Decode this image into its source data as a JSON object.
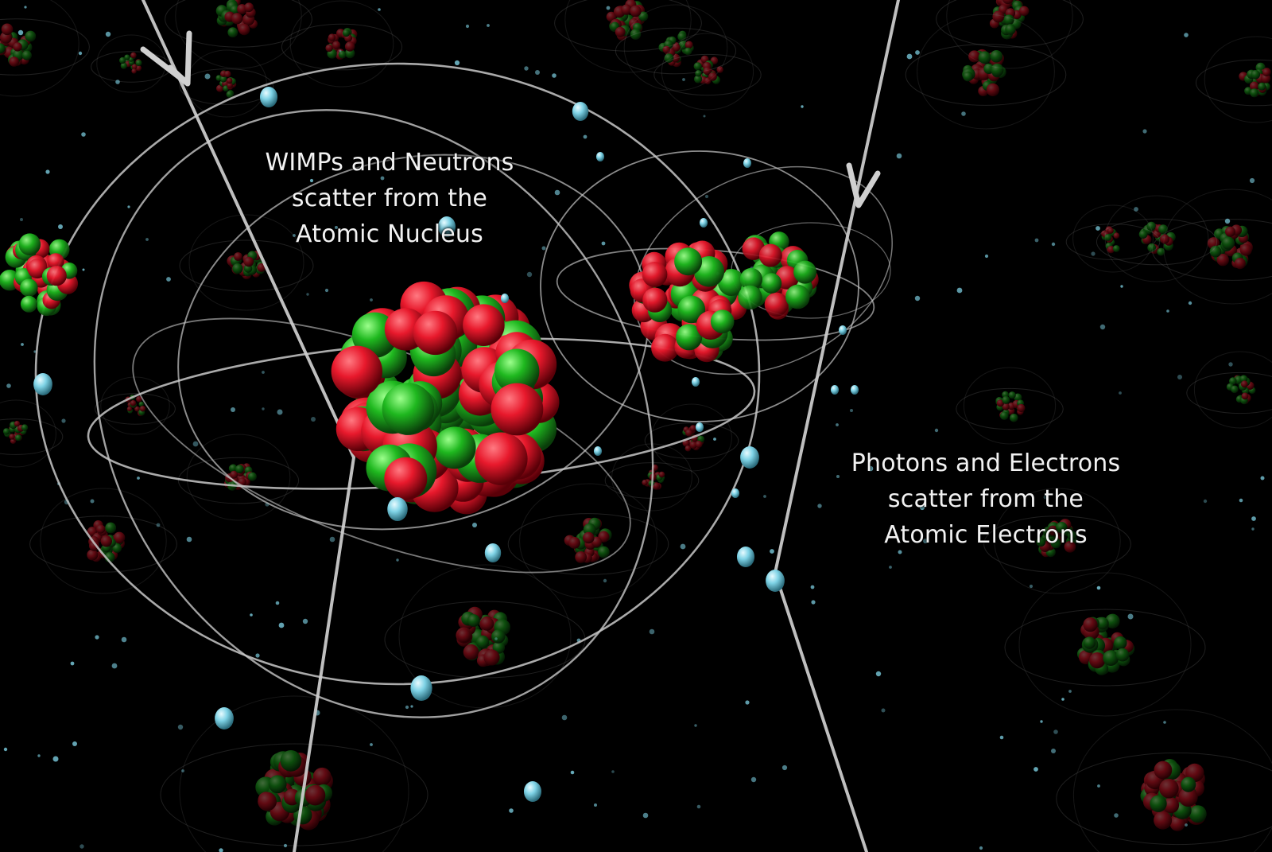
{
  "captions": {
    "nucleus": {
      "line1": "WIMPs and Neutrons",
      "line2": "scatter from the",
      "line3": "Atomic Nucleus"
    },
    "electrons": {
      "line1": "Photons and Electrons",
      "line2": "scatter from the",
      "line3": "Atomic Electrons"
    }
  },
  "colors": {
    "background": "#000000",
    "proton": "#e8192c",
    "neutron": "#1fb81f",
    "electron": "#7fd3e6",
    "orbit": "#c8c8c8",
    "track": "#c8c8c8"
  }
}
